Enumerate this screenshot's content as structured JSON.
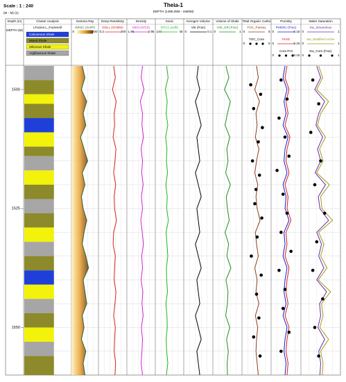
{
  "chart_data": {
    "type": "welllog",
    "scale_text": "Scale : 1 : 240",
    "title": "Theia-1",
    "subtitle": "DEPTH (1495.05M - 1560M)",
    "units_text": "(M - M) (1)",
    "depth_track": {
      "name": "Depth (m)",
      "label": "DEPTH (M)"
    },
    "ylim": [
      1495.05,
      1560
    ],
    "yticks": [
      1500,
      1525,
      1550
    ],
    "minor_yticks": [
      1500,
      1505,
      1510,
      1515,
      1520,
      1525,
      1530,
      1535,
      1540,
      1545,
      1550,
      1555
    ],
    "depth": [
      1495.05,
      1497.5,
      1500,
      1502.5,
      1505,
      1507.5,
      1510,
      1512.5,
      1515,
      1517.5,
      1520,
      1522.5,
      1525,
      1527.5,
      1530,
      1532.5,
      1535,
      1537.5,
      1540,
      1542.5,
      1545,
      1547.5,
      1550,
      1552.5,
      1555,
      1557.5,
      1560
    ],
    "cluster": {
      "name": "Cluster Analysis",
      "label": "LFacies L_FaciesAll",
      "facies": [
        {
          "name": "Calcareous Shale",
          "color": "#1f3fd8"
        },
        {
          "name": "Mixed Shale",
          "color": "#8c8a2a"
        },
        {
          "name": "Siliceous Shale",
          "color": "#f2f20a"
        },
        {
          "name": "Argillaceous Shale",
          "color": "#a6a6a6"
        }
      ],
      "facies_tops": [
        1495.05,
        1498,
        1501,
        1503,
        1506,
        1509,
        1512,
        1514,
        1517,
        1520,
        1523,
        1526,
        1529,
        1532,
        1535,
        1538,
        1541,
        1544,
        1547,
        1550,
        1553,
        1556
      ],
      "facies_codes": [
        3,
        1,
        2,
        1,
        0,
        2,
        1,
        3,
        2,
        1,
        3,
        1,
        2,
        3,
        1,
        0,
        2,
        3,
        1,
        2,
        3,
        1
      ]
    },
    "tracks": [
      {
        "name": "Gamma Ray",
        "curves": [
          {
            "name": "GRGC (GAPI)",
            "color": "#2d5e2d",
            "lim": [
              0,
              300
            ],
            "fill": true,
            "values": [
              120,
              150,
              110,
              170,
              130,
              160,
              100,
              140,
              180,
              120,
              150,
              110,
              130,
              170,
              140,
              120,
              160,
              190,
              130,
              150,
              170,
              120,
              140,
              110,
              160,
              130,
              150
            ]
          }
        ]
      },
      {
        "name": "Deep Resistivity",
        "log": true,
        "curves": [
          {
            "name": "DDLL (OHMM)",
            "color": "#d62020",
            "lim": [
              0.2,
              200
            ],
            "values": [
              8,
              12,
              6,
              15,
              9,
              10,
              7,
              14,
              11,
              8,
              13,
              9,
              10,
              16,
              8,
              7,
              12,
              10,
              9,
              14,
              11,
              8,
              12,
              10,
              9,
              13,
              11
            ]
          }
        ]
      },
      {
        "name": "Density",
        "curves": [
          {
            "name": "DEN (G/C3)",
            "color": "#d020d0",
            "lim": [
              1.95,
              2.95
            ],
            "values": [
              2.5,
              2.45,
              2.55,
              2.42,
              2.5,
              2.48,
              2.53,
              2.45,
              2.5,
              2.47,
              2.52,
              2.46,
              2.5,
              2.44,
              2.49,
              2.53,
              2.47,
              2.5,
              2.45,
              2.51,
              2.48,
              2.52,
              2.46,
              2.5,
              2.48,
              2.45,
              2.5
            ]
          }
        ]
      },
      {
        "name": "Sonic",
        "curves": [
          {
            "name": "DTC1 (us/ft)",
            "color": "#22b822",
            "lim": [
              140,
              40
            ],
            "values": [
              100,
              95,
              105,
              98,
              102,
              96,
              104,
              99,
              101,
              97,
              103,
              98,
              100,
              94,
              102,
              99,
              96,
              101,
              100,
              97,
              103,
              99,
              98,
              102,
              100,
              96,
              101
            ]
          }
        ]
      },
      {
        "name": "Kerogen Volume",
        "curves": [
          {
            "name": "Vkr (Frac)",
            "color": "#000000",
            "lim": [
              0,
              0.1
            ],
            "values": [
              0.05,
              0.045,
              0.055,
              0.04,
              0.05,
              0.06,
              0.045,
              0.05,
              0.055,
              0.04,
              0.05,
              0.06,
              0.045,
              0.05,
              0.055,
              0.04,
              0.05,
              0.06,
              0.045,
              0.05,
              0.055,
              0.04,
              0.05,
              0.06,
              0.045,
              0.05,
              0.055
            ]
          }
        ]
      },
      {
        "name": "Volume of Shale",
        "curves": [
          {
            "name": "Vsh_GR (Frac)",
            "color": "#1e8c1e",
            "lim": [
              0,
              1
            ],
            "values": [
              0.45,
              0.55,
              0.4,
              0.6,
              0.5,
              0.42,
              0.58,
              0.48,
              0.52,
              0.44,
              0.6,
              0.46,
              0.5,
              0.56,
              0.42,
              0.54,
              0.48,
              0.62,
              0.45,
              0.52,
              0.5,
              0.44,
              0.58,
              0.47,
              0.53,
              0.49,
              0.5
            ]
          }
        ]
      },
      {
        "name": "Total Organic Carbo",
        "curves": [
          {
            "name": "TOC_Passey",
            "color": "#8b3a1a",
            "lim": [
              0,
              5
            ],
            "values": [
              2.5,
              2.8,
              2.2,
              3.0,
              2.4,
              2.6,
              2.3,
              2.9,
              2.5,
              2.2,
              2.7,
              2.4,
              2.6,
              3.1,
              2.3,
              2.5,
              2.8,
              2.2,
              2.6,
              2.4,
              2.9,
              2.3,
              2.7,
              2.5,
              2.4,
              2.6,
              2.8
            ]
          },
          {
            "name": "TOC_Core",
            "color": "#000000",
            "lim": [
              0,
              5
            ],
            "depths": [
              1499,
              1501,
              1504,
              1508,
              1511,
              1515,
              1518,
              1521,
              1524,
              1527,
              1531,
              1535,
              1539,
              1543,
              1548,
              1552,
              1556
            ],
            "values": [
              1.5,
              3.2,
              2.0,
              3.5,
              2.8,
              1.8,
              3.0,
              2.4,
              2.2,
              3.4,
              2.6,
              1.6,
              3.3,
              2.5,
              2.9,
              2.0,
              3.1
            ]
          }
        ]
      },
      {
        "name": "Porosity",
        "curves": [
          {
            "name": "PHIDKc (Frac)",
            "color": "#1a1ad0",
            "lim": [
              0,
              0.15
            ],
            "values": [
              0.07,
              0.06,
              0.08,
              0.065,
              0.075,
              0.06,
              0.085,
              0.07,
              0.065,
              0.08,
              0.06,
              0.075,
              0.07,
              0.09,
              0.065,
              0.07,
              0.06,
              0.08,
              0.07,
              0.065,
              0.075,
              0.06,
              0.08,
              0.07,
              0.065,
              0.075,
              0.07
            ]
          },
          {
            "name": "PHID",
            "color": "#d02020",
            "lim": [
              0,
              0.15
            ],
            "values": [
              0.08,
              0.07,
              0.09,
              0.075,
              0.085,
              0.07,
              0.095,
              0.08,
              0.075,
              0.09,
              0.07,
              0.085,
              0.08,
              0.1,
              0.075,
              0.08,
              0.07,
              0.09,
              0.08,
              0.075,
              0.085,
              0.07,
              0.09,
              0.08,
              0.075,
              0.085,
              0.08
            ]
          },
          {
            "name": "Core PHI",
            "color": "#000000",
            "lim": [
              0,
              0.15
            ],
            "depths": [
              1498,
              1502,
              1506,
              1510,
              1514,
              1517,
              1522,
              1526,
              1530,
              1534,
              1538,
              1542,
              1546,
              1551,
              1555
            ],
            "values": [
              0.05,
              0.08,
              0.04,
              0.07,
              0.09,
              0.03,
              0.06,
              0.08,
              0.05,
              0.1,
              0.04,
              0.07,
              0.06,
              0.09,
              0.05
            ]
          }
        ]
      },
      {
        "name": "Water Saturation",
        "curves": [
          {
            "name": "Sw_Simandoux",
            "color": "#6a2aa0",
            "lim": [
              0,
              1
            ],
            "values": [
              0.4,
              0.5,
              0.35,
              0.6,
              0.45,
              0.38,
              0.55,
              0.42,
              0.5,
              0.36,
              0.62,
              0.44,
              0.48,
              0.7,
              0.4,
              0.52,
              0.45,
              0.58,
              0.4,
              0.65,
              0.47,
              0.5,
              0.43,
              0.6,
              0.45,
              0.5,
              0.48
            ]
          },
          {
            "name": "Sw_Modified Archie",
            "color": "#9a9a1a",
            "lim": [
              0,
              1
            ],
            "values": [
              0.45,
              0.55,
              0.4,
              0.7,
              0.5,
              0.42,
              0.62,
              0.47,
              0.56,
              0.4,
              0.72,
              0.5,
              0.53,
              0.8,
              0.45,
              0.58,
              0.5,
              0.66,
              0.44,
              0.75,
              0.52,
              0.56,
              0.48,
              0.7,
              0.5,
              0.56,
              0.54
            ]
          },
          {
            "name": "Sw_Core (Frac)",
            "color": "#000000",
            "lim": [
              0,
              1
            ],
            "depths": [
              1498,
              1503,
              1509,
              1515,
              1520,
              1526,
              1532,
              1538,
              1544,
              1550,
              1556
            ],
            "values": [
              0.3,
              0.45,
              0.25,
              0.5,
              0.35,
              0.6,
              0.4,
              0.3,
              0.55,
              0.35,
              0.45
            ]
          }
        ]
      }
    ]
  }
}
